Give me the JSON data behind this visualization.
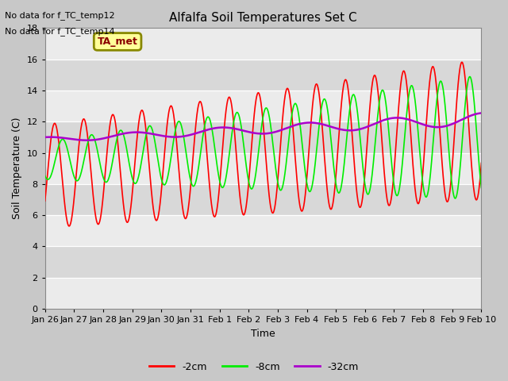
{
  "title": "Alfalfa Soil Temperatures Set C",
  "xlabel": "Time",
  "ylabel": "Soil Temperature (C)",
  "ylim": [
    0,
    18
  ],
  "yticks": [
    0,
    2,
    4,
    6,
    8,
    10,
    12,
    14,
    16,
    18
  ],
  "no_data_lines": [
    "No data for f_TC_temp12",
    "No data for f_TC_temp14"
  ],
  "ta_met_label": "TA_met",
  "x_tick_labels": [
    "Jan 26",
    "Jan 27",
    "Jan 28",
    "Jan 29",
    "Jan 30",
    "Jan 31",
    "Feb 1",
    "Feb 2",
    "Feb 3",
    "Feb 4",
    "Feb 5",
    "Feb 6",
    "Feb 7",
    "Feb 8",
    "Feb 9",
    "Feb 10"
  ],
  "color_2cm": "#ff0000",
  "color_8cm": "#00ee00",
  "color_32cm": "#aa00cc",
  "bg_color": "#c8c8c8",
  "plot_bg_light": "#ebebeb",
  "plot_bg_dark": "#d8d8d8",
  "legend_box_facecolor": "#ffff99",
  "legend_box_edgecolor": "#888800",
  "n_days": 15,
  "n_points": 1500
}
